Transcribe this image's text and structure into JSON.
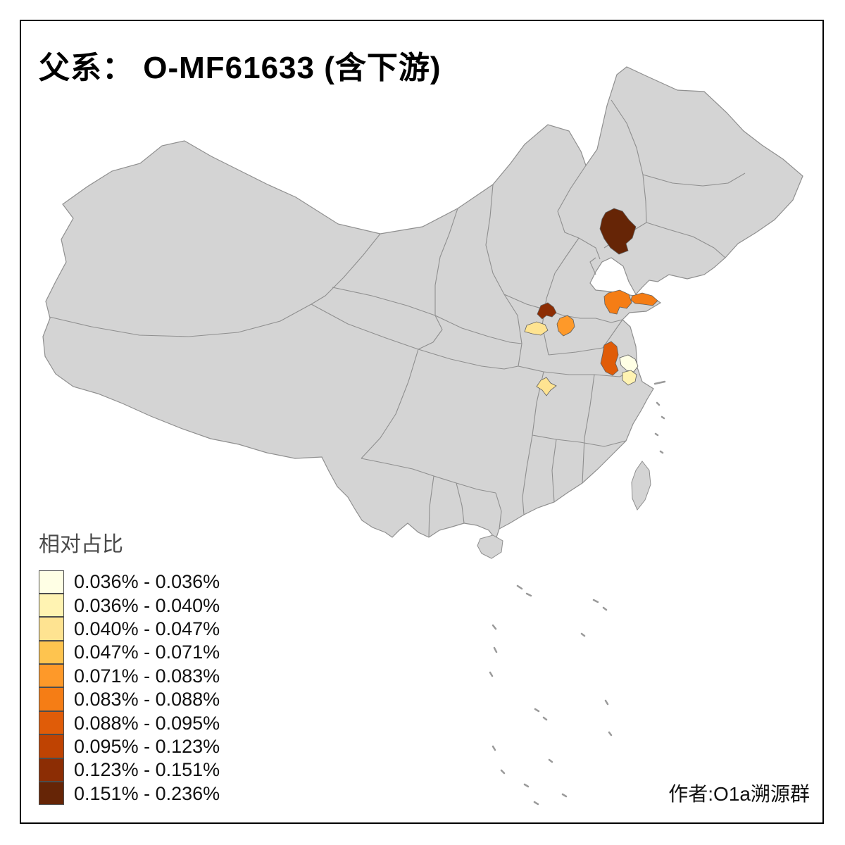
{
  "title": "父系： O-MF61633 (含下游)",
  "attribution": "作者:O1a溯源群",
  "legend": {
    "title": "相对占比",
    "items": [
      {
        "label": "0.036% - 0.036%",
        "color": "#ffffe5"
      },
      {
        "label": "0.036% - 0.040%",
        "color": "#fff3b2"
      },
      {
        "label": "0.040% - 0.047%",
        "color": "#fee391"
      },
      {
        "label": "0.047% - 0.071%",
        "color": "#fec44f"
      },
      {
        "label": "0.071% - 0.083%",
        "color": "#fe9929"
      },
      {
        "label": "0.083% - 0.088%",
        "color": "#f57d15"
      },
      {
        "label": "0.088% - 0.095%",
        "color": "#e05c08"
      },
      {
        "label": "0.095% - 0.123%",
        "color": "#bf4302"
      },
      {
        "label": "0.123% - 0.151%",
        "color": "#8c2d04"
      },
      {
        "label": "0.151% - 0.236%",
        "color": "#662506"
      }
    ]
  },
  "map": {
    "land_color": "#d4d4d4",
    "boundary_color": "#8f8f8f",
    "sea_color": "#ffffff",
    "regions": {
      "northeast_liaoning_west": {
        "color": "#662506",
        "range": "0.151% - 0.236%"
      },
      "shandong_central": {
        "color": "#f57d15",
        "range": "0.083% - 0.088%"
      },
      "shandong_peninsula": {
        "color": "#f57d15",
        "range": "0.083% - 0.088%"
      },
      "shanxi_southwest": {
        "color": "#8c2d04",
        "range": "0.123% - 0.151%"
      },
      "henan_west": {
        "color": "#fe9929",
        "range": "0.071% - 0.083%"
      },
      "shaanxi_guanzhong": {
        "color": "#fee391",
        "range": "0.040% - 0.047%"
      },
      "anhui_central": {
        "color": "#e05c08",
        "range": "0.088% - 0.095%"
      },
      "jiangsu_south_pale": {
        "color": "#ffffe5",
        "range": "0.036% - 0.036%"
      },
      "jiangsu_south_light": {
        "color": "#fff3b2",
        "range": "0.036% - 0.040%"
      },
      "hubei_north": {
        "color": "#fee391",
        "range": "0.040% - 0.047%"
      }
    }
  }
}
